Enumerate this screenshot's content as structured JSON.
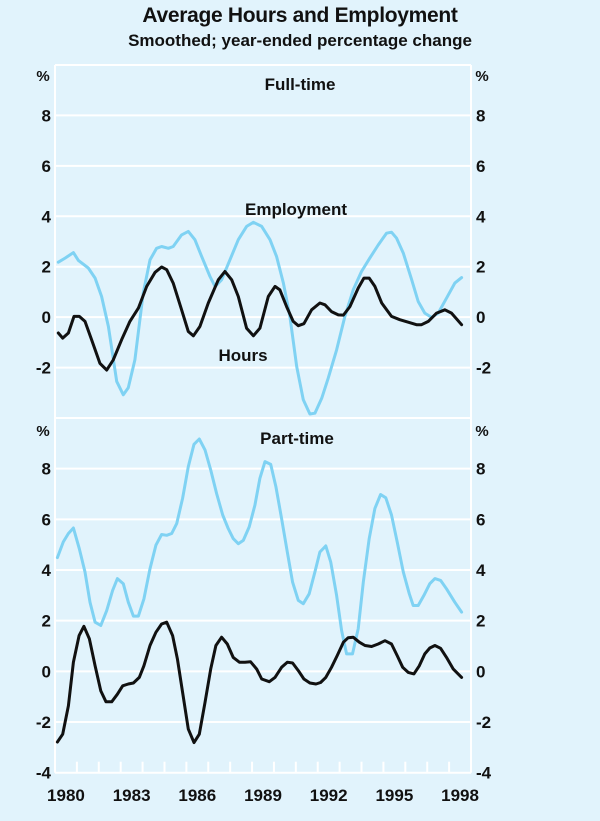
{
  "title": "Average Hours and Employment",
  "subtitle": "Smoothed; year-ended percentage change",
  "colors": {
    "background": "#e1f3fc",
    "employment": "#7fd2f3",
    "hours": "#111111",
    "grid": "#ffffff"
  },
  "chart_data": [
    {
      "type": "line",
      "panel_title": "Full-time",
      "ylabel_left": "%",
      "ylabel_right": "%",
      "ylim": [
        -4,
        10
      ],
      "yticks": [
        -2,
        0,
        2,
        4,
        6,
        8
      ],
      "xlim": [
        1980,
        1999
      ],
      "grid": true,
      "series": [
        {
          "name": "Employment",
          "color": "#7fd2f3",
          "x": [
            1980.15,
            1980.46,
            1980.84,
            1981.07,
            1981.52,
            1981.83,
            1982.13,
            1982.44,
            1982.82,
            1983.12,
            1983.35,
            1983.65,
            1984.03,
            1984.34,
            1984.64,
            1984.87,
            1985.18,
            1985.4,
            1985.78,
            1986.09,
            1986.39,
            1986.7,
            1987.08,
            1987.31,
            1987.61,
            1987.99,
            1988.37,
            1988.75,
            1989.06,
            1989.44,
            1989.82,
            1990.12,
            1990.43,
            1990.73,
            1991.04,
            1991.34,
            1991.64,
            1991.87,
            1992.18,
            1992.48,
            1992.86,
            1993.24,
            1993.62,
            1994.0,
            1994.38,
            1994.76,
            1995.14,
            1995.37,
            1995.6,
            1995.91,
            1996.29,
            1996.59,
            1996.89,
            1997.2,
            1997.5,
            1997.88,
            1998.26,
            1998.57
          ],
          "y": [
            2.18,
            2.34,
            2.56,
            2.25,
            1.95,
            1.55,
            0.82,
            -0.37,
            -2.55,
            -3.08,
            -2.8,
            -1.69,
            0.95,
            2.27,
            2.73,
            2.8,
            2.73,
            2.8,
            3.26,
            3.4,
            3.07,
            2.4,
            1.61,
            1.21,
            1.48,
            2.27,
            3.07,
            3.6,
            3.76,
            3.6,
            3.07,
            2.4,
            1.35,
            0.03,
            -1.96,
            -3.28,
            -3.84,
            -3.81,
            -3.22,
            -2.42,
            -1.3,
            0.03,
            1.08,
            1.81,
            2.34,
            2.86,
            3.33,
            3.37,
            3.13,
            2.54,
            1.48,
            0.62,
            0.16,
            -0.01,
            0.16,
            0.75,
            1.35,
            1.57
          ]
        },
        {
          "name": "Hours",
          "color": "#111111",
          "x": [
            1980.15,
            1980.35,
            1980.61,
            1980.87,
            1981.11,
            1981.37,
            1981.67,
            1982.05,
            1982.36,
            1982.66,
            1983.04,
            1983.42,
            1983.81,
            1984.19,
            1984.57,
            1984.87,
            1985.1,
            1985.4,
            1985.78,
            1986.09,
            1986.32,
            1986.62,
            1987.0,
            1987.46,
            1987.76,
            1988.07,
            1988.37,
            1988.75,
            1989.06,
            1989.36,
            1989.74,
            1990.05,
            1990.27,
            1990.58,
            1990.88,
            1991.11,
            1991.37,
            1991.72,
            1992.1,
            1992.33,
            1992.63,
            1992.94,
            1993.17,
            1993.47,
            1993.85,
            1994.11,
            1994.35,
            1994.61,
            1994.92,
            1995.37,
            1995.75,
            1996.13,
            1996.51,
            1996.74,
            1997.05,
            1997.43,
            1997.81,
            1998.11,
            1998.57
          ],
          "y": [
            -0.63,
            -0.83,
            -0.63,
            0.03,
            0.03,
            -0.17,
            -0.9,
            -1.83,
            -2.1,
            -1.7,
            -0.9,
            -0.17,
            0.36,
            1.22,
            1.78,
            1.99,
            1.88,
            1.35,
            0.29,
            -0.57,
            -0.74,
            -0.37,
            0.56,
            1.48,
            1.81,
            1.48,
            0.82,
            -0.44,
            -0.74,
            -0.44,
            0.82,
            1.22,
            1.08,
            0.42,
            -0.17,
            -0.34,
            -0.26,
            0.29,
            0.56,
            0.49,
            0.22,
            0.09,
            0.08,
            0.42,
            1.15,
            1.55,
            1.55,
            1.22,
            0.56,
            0.03,
            -0.1,
            -0.2,
            -0.3,
            -0.3,
            -0.17,
            0.16,
            0.29,
            0.16,
            -0.3
          ]
        }
      ]
    },
    {
      "type": "line",
      "panel_title": "Part-time",
      "ylabel_left": "%",
      "ylabel_right": "%",
      "ylim": [
        -4,
        10
      ],
      "yticks": [
        -4,
        -2,
        0,
        2,
        4,
        6,
        8
      ],
      "xlim": [
        1980,
        1999
      ],
      "xtick_labels": [
        "1980",
        "1983",
        "1986",
        "1989",
        "1992",
        "1995",
        "1998"
      ],
      "grid": true,
      "series": [
        {
          "color": "#7fd2f3",
          "x": [
            1980.11,
            1980.38,
            1980.61,
            1980.84,
            1981.11,
            1981.37,
            1981.6,
            1981.83,
            1982.09,
            1982.36,
            1982.63,
            1982.85,
            1983.12,
            1983.35,
            1983.58,
            1983.81,
            1984.06,
            1984.34,
            1984.61,
            1984.87,
            1985.1,
            1985.33,
            1985.56,
            1985.83,
            1986.09,
            1986.35,
            1986.59,
            1986.85,
            1987.11,
            1987.38,
            1987.66,
            1987.91,
            1988.14,
            1988.37,
            1988.6,
            1988.87,
            1989.13,
            1989.36,
            1989.59,
            1989.85,
            1990.09,
            1990.35,
            1990.61,
            1990.85,
            1991.11,
            1991.34,
            1991.61,
            1991.87,
            1992.1,
            1992.37,
            1992.59,
            1992.86,
            1993.09,
            1993.32,
            1993.59,
            1993.85,
            1994.08,
            1994.35,
            1994.61,
            1994.87,
            1995.11,
            1995.37,
            1995.63,
            1995.91,
            1996.18,
            1996.36,
            1996.59,
            1996.85,
            1997.12,
            1997.35,
            1997.61,
            1997.88,
            1998.26,
            1998.57
          ],
          "y": [
            4.49,
            5.11,
            5.44,
            5.66,
            4.84,
            3.92,
            2.73,
            1.94,
            1.81,
            2.4,
            3.19,
            3.66,
            3.46,
            2.73,
            2.18,
            2.18,
            2.86,
            4.05,
            4.98,
            5.4,
            5.37,
            5.44,
            5.83,
            6.83,
            8.08,
            8.96,
            9.17,
            8.74,
            7.95,
            7.02,
            6.17,
            5.64,
            5.24,
            5.04,
            5.17,
            5.7,
            6.56,
            7.62,
            8.28,
            8.17,
            7.29,
            6.03,
            4.71,
            3.52,
            2.8,
            2.67,
            3.06,
            3.92,
            4.71,
            4.95,
            4.32,
            3.0,
            1.61,
            0.69,
            0.69,
            1.68,
            3.52,
            5.24,
            6.43,
            6.98,
            6.85,
            6.17,
            5.11,
            3.92,
            3.06,
            2.6,
            2.6,
            3.0,
            3.46,
            3.66,
            3.59,
            3.26,
            2.73,
            2.34
          ]
        },
        {
          "color": "#111111",
          "x": [
            1980.11,
            1980.35,
            1980.61,
            1980.84,
            1981.1,
            1981.32,
            1981.57,
            1981.83,
            1982.09,
            1982.33,
            1982.59,
            1982.85,
            1983.09,
            1983.35,
            1983.58,
            1983.85,
            1984.06,
            1984.34,
            1984.61,
            1984.87,
            1985.1,
            1985.37,
            1985.59,
            1985.83,
            1986.09,
            1986.35,
            1986.59,
            1986.85,
            1987.11,
            1987.35,
            1987.61,
            1987.87,
            1988.14,
            1988.42,
            1988.68,
            1988.93,
            1989.21,
            1989.44,
            1989.79,
            1990.05,
            1990.35,
            1990.61,
            1990.85,
            1991.11,
            1991.37,
            1991.64,
            1991.92,
            1992.13,
            1992.37,
            1992.63,
            1992.89,
            1993.17,
            1993.39,
            1993.62,
            1993.9,
            1994.16,
            1994.46,
            1994.76,
            1995.07,
            1995.37,
            1995.63,
            1995.88,
            1996.13,
            1996.39,
            1996.64,
            1996.89,
            1997.12,
            1997.35,
            1997.61,
            1997.88,
            1998.19,
            1998.57
          ],
          "y": [
            -2.79,
            -2.48,
            -1.36,
            0.36,
            1.41,
            1.78,
            1.28,
            0.22,
            -0.77,
            -1.2,
            -1.2,
            -0.9,
            -0.57,
            -0.5,
            -0.46,
            -0.24,
            0.22,
            1.02,
            1.54,
            1.87,
            1.94,
            1.41,
            0.49,
            -0.83,
            -2.28,
            -2.81,
            -2.48,
            -1.23,
            0.09,
            1.02,
            1.35,
            1.08,
            0.55,
            0.36,
            0.36,
            0.38,
            0.09,
            -0.3,
            -0.41,
            -0.24,
            0.16,
            0.36,
            0.33,
            0.03,
            -0.3,
            -0.46,
            -0.5,
            -0.44,
            -0.24,
            0.16,
            0.62,
            1.15,
            1.33,
            1.35,
            1.15,
            1.02,
            0.98,
            1.08,
            1.21,
            1.08,
            0.62,
            0.16,
            -0.04,
            -0.1,
            0.22,
            0.69,
            0.92,
            1.02,
            0.91,
            0.55,
            0.09,
            -0.24
          ]
        }
      ],
      "annotations": {
        "employment_label": "Employment",
        "hours_label": "Hours"
      }
    }
  ]
}
